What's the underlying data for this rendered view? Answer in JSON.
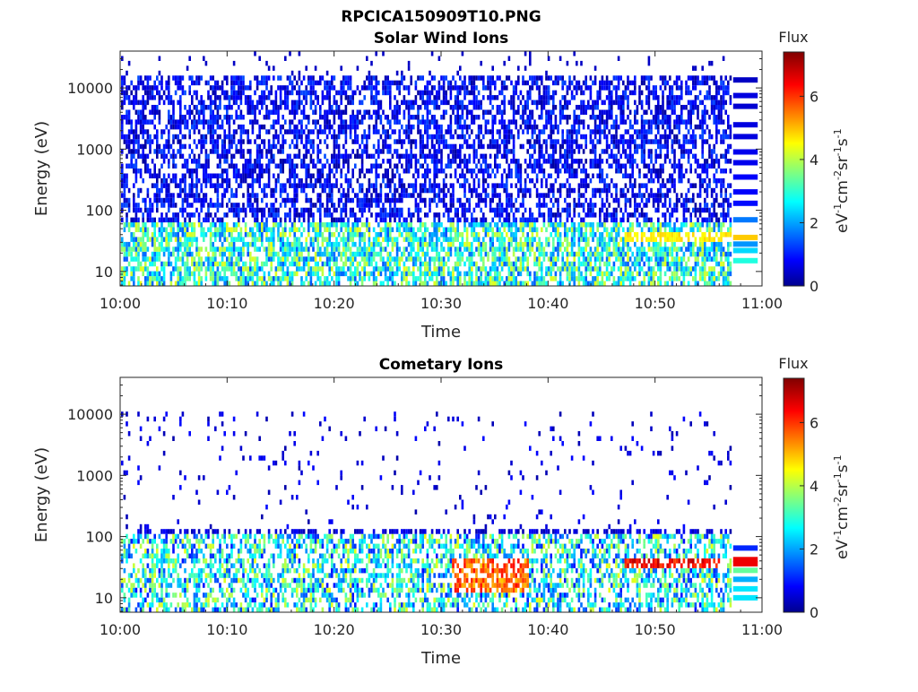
{
  "figure": {
    "title": "RPCICA150909T10.PNG"
  },
  "chart_data": [
    {
      "type": "heatmap",
      "title": "Solar Wind Ions",
      "xlabel": "Time",
      "ylabel": "Energy (eV)",
      "x_ticks": [
        "10:00",
        "10:10",
        "10:20",
        "10:30",
        "10:40",
        "10:50",
        "11:00"
      ],
      "y_ticks": [
        "10",
        "100",
        "1000",
        "10000"
      ],
      "y_scale": "log",
      "ylim": [
        5.8,
        40000
      ],
      "xlim": [
        "10:00",
        "11:00"
      ],
      "colorbar": {
        "label": "Flux",
        "units": "eV-1cm-2sr-1s-1",
        "ticks": [
          "0",
          "2",
          "4",
          "6"
        ],
        "range": [
          0,
          7.4
        ],
        "colormap": "jet"
      },
      "grid": false,
      "description_bands": [
        {
          "energy_eV": [
            6,
            60
          ],
          "flux": [
            1.5,
            4.5
          ]
        },
        {
          "energy_eV": [
            60,
            15000
          ],
          "flux": [
            0.2,
            1.5
          ]
        },
        {
          "energy_eV": [
            30,
            45
          ],
          "time_window": [
            "10:47",
            "10:57"
          ],
          "flux": [
            4.5,
            5.0
          ]
        }
      ]
    },
    {
      "type": "heatmap",
      "title": "Cometary Ions",
      "xlabel": "Time",
      "ylabel": "Energy (eV)",
      "x_ticks": [
        "10:00",
        "10:10",
        "10:20",
        "10:30",
        "10:40",
        "10:50",
        "11:00"
      ],
      "y_ticks": [
        "10",
        "100",
        "1000",
        "10000"
      ],
      "y_scale": "log",
      "ylim": [
        5.8,
        40000
      ],
      "xlim": [
        "10:00",
        "11:00"
      ],
      "colorbar": {
        "label": "Flux",
        "units": "eV-1cm-2sr-1s-1",
        "ticks": [
          "0",
          "2",
          "4",
          "6"
        ],
        "range": [
          0,
          7.4
        ],
        "colormap": "jet"
      },
      "grid": false,
      "description_bands": [
        {
          "energy_eV": [
            6,
            120
          ],
          "flux": [
            1.0,
            4.5
          ]
        },
        {
          "energy_eV": [
            120,
            12000
          ],
          "flux": [
            0.3,
            1.0
          ]
        },
        {
          "energy_eV": [
            30,
            45
          ],
          "time_window": [
            "10:47",
            "10:56"
          ],
          "flux": [
            6.0,
            7.0
          ]
        },
        {
          "energy_eV": [
            12,
            45
          ],
          "time_window": [
            "10:31",
            "10:38"
          ],
          "flux": [
            5.0,
            6.5
          ]
        }
      ]
    }
  ]
}
